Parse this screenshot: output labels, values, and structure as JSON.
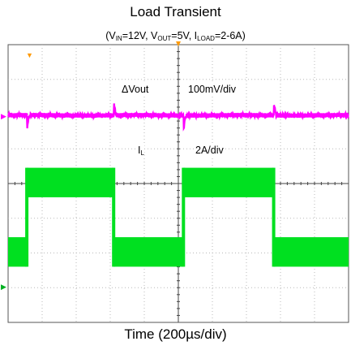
{
  "chart_data": {
    "type": "line",
    "title": "Load Transient",
    "subtitle": {
      "prefix": "(V",
      "vin_sub": "IN",
      "vin_val": "=12V, V",
      "vout_sub": "OUT",
      "vout_val": "=5V, I",
      "iload_sub": "LOAD",
      "iload_val": "=2-6A)"
    },
    "xlabel": "Time (200µs/div)",
    "ylabel": "",
    "grid": true,
    "x_divisions": 10,
    "y_divisions": 8,
    "annotations": {
      "vout_label": "ΔVout",
      "vout_scale": "100mV/div",
      "il_label": "I",
      "il_sub": "L",
      "il_scale": "2A/div"
    },
    "load_steps": [
      {
        "t_us": 0,
        "iload_A": 2
      },
      {
        "t_us": 110,
        "iload_A": 6
      },
      {
        "t_us": 620,
        "iload_A": 2
      },
      {
        "t_us": 1030,
        "iload_A": 6
      },
      {
        "t_us": 1560,
        "iload_A": 2
      }
    ],
    "series": [
      {
        "trace": "vout",
        "color": "#ff00ff",
        "x_us": [
          0,
          110,
          112,
          118,
          125,
          620,
          622,
          628,
          635,
          1030,
          1032,
          1038,
          1045,
          1560,
          1562,
          1568,
          1575,
          2000
        ],
        "y_mV": [
          0,
          0,
          -35,
          -15,
          0,
          0,
          35,
          15,
          0,
          0,
          -35,
          -15,
          0,
          0,
          35,
          15,
          0,
          0
        ]
      },
      {
        "trace": "inductor_current",
        "color": "#00e020",
        "ripple_pp_A": 1.7,
        "x_us": [
          0,
          110,
          620,
          1030,
          1560,
          2000
        ],
        "y_avg_A": [
          2,
          6,
          2,
          6,
          2,
          2
        ]
      }
    ],
    "colors": {
      "grid": "#b8b8b8",
      "frame": "#555555",
      "vout": "#ff00ff",
      "il": "#00e020",
      "trigger": "#ff9900",
      "ch_marker": "#ff00ff"
    }
  }
}
